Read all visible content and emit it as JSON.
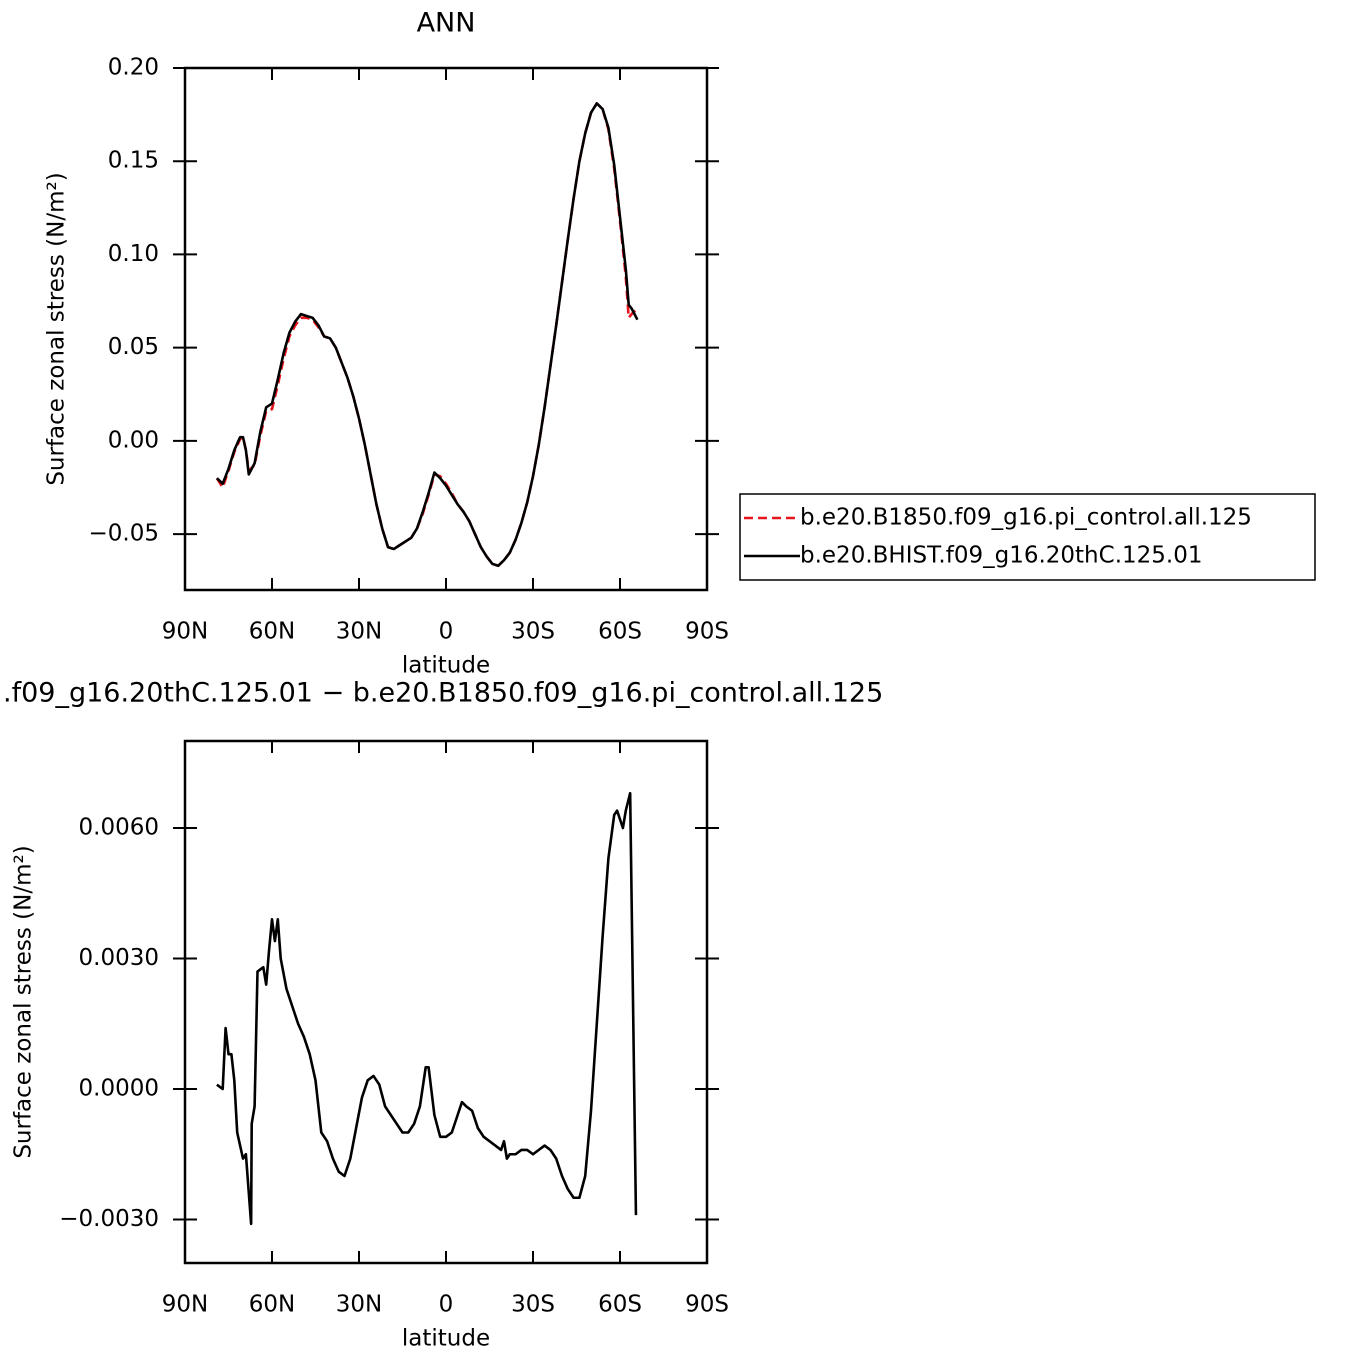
{
  "chart_data": [
    {
      "type": "line",
      "title": "ANN",
      "xlabel": "latitude",
      "ylabel": "Surface zonal stress (N/m²)",
      "xlim": [
        90,
        -90
      ],
      "ylim": [
        -0.08,
        0.2
      ],
      "xticks": [
        {
          "value": 90,
          "label": "90N"
        },
        {
          "value": 60,
          "label": "60N"
        },
        {
          "value": 30,
          "label": "30N"
        },
        0,
        {
          "value": -30,
          "label": "30S"
        },
        {
          "value": -60,
          "label": "60S"
        },
        {
          "value": -90,
          "label": "90S"
        }
      ],
      "yticks": [
        {
          "value": 0.2,
          "label": "0.20"
        },
        {
          "value": 0.15,
          "label": "0.15"
        },
        {
          "value": 0.1,
          "label": "0.10"
        },
        {
          "value": 0.05,
          "label": "0.05"
        },
        {
          "value": 0,
          "label": "0.00"
        },
        {
          "value": -0.05,
          "label": "−0.05"
        }
      ],
      "legend": "outside-right",
      "x": [
        79,
        77,
        75,
        73,
        71,
        70,
        69,
        68,
        66,
        64,
        62,
        60,
        58,
        56,
        54,
        52,
        50,
        48,
        46,
        44,
        42,
        40,
        38,
        36,
        34,
        32,
        30,
        28,
        26,
        24,
        22,
        20,
        18,
        16,
        14,
        12,
        10,
        8,
        6,
        4,
        2,
        0,
        -2,
        -4,
        -6,
        -8,
        -10,
        -12,
        -14,
        -16,
        -18,
        -20,
        -22,
        -24,
        -26,
        -28,
        -30,
        -32,
        -34,
        -36,
        -38,
        -40,
        -42,
        -44,
        -46,
        -48,
        -50,
        -52,
        -54,
        -56,
        -58,
        -60,
        -62,
        -63,
        -64,
        -66
      ],
      "series": [
        {
          "name": "b.e20.B1850.f09_g16.pi_control.all.125",
          "color": "#e8141b",
          "linestyle": "dashed",
          "values": [
            -0.02,
            -0.025,
            -0.016,
            -0.006,
            0.001,
            0.002,
            -0.005,
            -0.016,
            -0.013,
            0.003,
            0.016,
            0.017,
            0.03,
            0.044,
            0.056,
            0.062,
            0.066,
            0.066,
            0.065,
            0.061,
            0.056,
            0.055,
            0.05,
            0.042,
            0.034,
            0.024,
            0.012,
            -0.002,
            -0.018,
            -0.034,
            -0.047,
            -0.057,
            -0.058,
            -0.056,
            -0.054,
            -0.052,
            -0.047,
            -0.039,
            -0.029,
            -0.018,
            -0.019,
            -0.023,
            -0.028,
            -0.034,
            -0.038,
            -0.043,
            -0.05,
            -0.057,
            -0.062,
            -0.066,
            -0.067,
            -0.064,
            -0.06,
            -0.053,
            -0.044,
            -0.033,
            -0.019,
            -0.002,
            0.018,
            0.04,
            0.062,
            0.085,
            0.108,
            0.13,
            0.15,
            0.165,
            0.176,
            0.181,
            0.178,
            0.167,
            0.146,
            0.118,
            0.088,
            0.066,
            0.068,
            0.071
          ]
        },
        {
          "name": "b.e20.BHIST.f09_g16.20thC.125.01",
          "color": "#000000",
          "linestyle": "solid",
          "values": [
            -0.02,
            -0.023,
            -0.015,
            -0.005,
            0.002,
            0.002,
            -0.005,
            -0.018,
            -0.012,
            0.005,
            0.018,
            0.02,
            0.033,
            0.047,
            0.058,
            0.064,
            0.068,
            0.067,
            0.066,
            0.062,
            0.056,
            0.055,
            0.05,
            0.042,
            0.034,
            0.024,
            0.012,
            -0.002,
            -0.018,
            -0.034,
            -0.047,
            -0.057,
            -0.058,
            -0.056,
            -0.054,
            -0.052,
            -0.047,
            -0.038,
            -0.028,
            -0.017,
            -0.02,
            -0.024,
            -0.029,
            -0.034,
            -0.038,
            -0.043,
            -0.05,
            -0.057,
            -0.062,
            -0.066,
            -0.067,
            -0.064,
            -0.06,
            -0.053,
            -0.044,
            -0.033,
            -0.019,
            -0.002,
            0.018,
            0.04,
            0.062,
            0.085,
            0.108,
            0.13,
            0.15,
            0.165,
            0.176,
            0.181,
            0.178,
            0.168,
            0.148,
            0.12,
            0.092,
            0.073,
            0.071,
            0.065
          ]
        }
      ]
    },
    {
      "type": "line",
      "title": ".f09_g16.20thC.125.01 − b.e20.B1850.f09_g16.pi_control.all.125",
      "xlabel": "latitude",
      "ylabel": "Surface zonal stress (N/m²)",
      "xlim": [
        90,
        -90
      ],
      "ylim": [
        -0.004,
        0.008
      ],
      "xticks": [
        {
          "value": 90,
          "label": "90N"
        },
        {
          "value": 60,
          "label": "60N"
        },
        {
          "value": 30,
          "label": "30N"
        },
        0,
        {
          "value": -30,
          "label": "30S"
        },
        {
          "value": -60,
          "label": "60S"
        },
        {
          "value": -90,
          "label": "90S"
        }
      ],
      "yticks": [
        {
          "value": 0.006,
          "label": "0.0060"
        },
        {
          "value": 0.003,
          "label": "0.0030"
        },
        {
          "value": 0,
          "label": "0.0000"
        },
        {
          "value": -0.003,
          "label": "−0.0030"
        }
      ],
      "x": [
        79,
        77,
        76,
        75,
        74,
        73,
        72,
        70,
        69,
        67.2,
        67,
        66,
        65,
        63,
        62,
        61,
        60,
        59,
        58,
        57,
        55,
        53,
        51,
        49,
        47,
        45,
        43,
        41,
        39,
        37,
        35,
        33,
        31,
        29,
        27,
        25,
        23,
        21,
        19,
        17,
        15,
        13,
        11,
        9,
        7,
        6,
        4,
        2,
        0,
        -2,
        -4,
        -5.5,
        -7,
        -9,
        -11,
        -13,
        -15,
        -17,
        -19,
        -20,
        -21,
        -22,
        -24,
        -26,
        -28,
        -30,
        -34,
        -36,
        -38,
        -40,
        -42,
        -44,
        -46,
        -48,
        -50,
        -52,
        -54,
        -56,
        -58,
        -59,
        -61,
        -62,
        -63.5,
        -65.5
      ],
      "series": [
        {
          "color": "#000000",
          "linestyle": "solid",
          "values": [
            0.0001,
            0.0,
            0.0014,
            0.0008,
            0.0008,
            0.0002,
            -0.001,
            -0.0016,
            -0.0015,
            -0.0031,
            -0.0008,
            -0.0004,
            0.0027,
            0.0028,
            0.0024,
            0.0032,
            0.0039,
            0.0034,
            0.0039,
            0.003,
            0.0023,
            0.0019,
            0.0015,
            0.0012,
            0.0008,
            0.0002,
            -0.001,
            -0.0012,
            -0.0016,
            -0.0019,
            -0.002,
            -0.0016,
            -0.0009,
            -0.0002,
            0.0002,
            0.0003,
            0.0001,
            -0.0004,
            -0.0006,
            -0.0008,
            -0.001,
            -0.001,
            -0.0008,
            -0.0004,
            0.0005,
            0.0005,
            -0.0006,
            -0.0011,
            -0.0011,
            -0.001,
            -0.0006,
            -0.0003,
            -0.0004,
            -0.0005,
            -0.0009,
            -0.0011,
            -0.0012,
            -0.0013,
            -0.0014,
            -0.0012,
            -0.0016,
            -0.0015,
            -0.0015,
            -0.0014,
            -0.0014,
            -0.0015,
            -0.0013,
            -0.0014,
            -0.0016,
            -0.002,
            -0.0023,
            -0.0025,
            -0.0025,
            -0.002,
            -0.0005,
            0.0015,
            0.0035,
            0.0053,
            0.0063,
            0.0064,
            0.006,
            0.0064,
            0.0068,
            -0.0029
          ]
        }
      ]
    }
  ]
}
